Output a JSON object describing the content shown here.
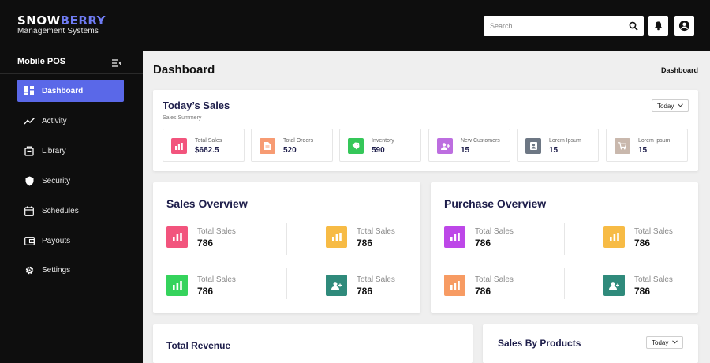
{
  "brand": {
    "name_a": "SNOW",
    "name_b": "BERRY",
    "subtitle": "Management Systems"
  },
  "search": {
    "placeholder": "Search"
  },
  "sidebar": {
    "header": "Mobile POS",
    "items": [
      {
        "label": "Dashboard",
        "icon": "grid-icon",
        "active": true
      },
      {
        "label": "Activity",
        "icon": "activity-icon"
      },
      {
        "label": "Library",
        "icon": "library-icon"
      },
      {
        "label": "Security",
        "icon": "shield-icon"
      },
      {
        "label": "Schedules",
        "icon": "calendar-icon"
      },
      {
        "label": "Payouts",
        "icon": "wallet-icon"
      },
      {
        "label": "Settings",
        "icon": "gear-icon"
      }
    ]
  },
  "page": {
    "title": "Dashboard",
    "breadcrumb": "Dashboard"
  },
  "today": {
    "title": "Today’s Sales",
    "subtitle": "Sales Summery",
    "filter": "Today",
    "stats": [
      {
        "label": "Total Sales",
        "value": "$682.5",
        "color": "#f2547d",
        "icon": "bar-chart-icon"
      },
      {
        "label": "Total Orders",
        "value": "520",
        "color": "#f79b73",
        "icon": "document-icon"
      },
      {
        "label": "Inventory",
        "value": "590",
        "color": "#35c759",
        "icon": "tag-icon"
      },
      {
        "label": "New Customers",
        "value": "15",
        "color": "#bd6ee0",
        "icon": "add-user-icon"
      },
      {
        "label": "Lorem Ipsum",
        "value": "15",
        "color": "#6d7784",
        "icon": "id-card-icon"
      },
      {
        "label": "Lorem ipsum",
        "value": "15",
        "color": "#c9b8ad",
        "icon": "cart-icon"
      }
    ]
  },
  "sales_overview": {
    "title": "Sales Overview",
    "items": [
      {
        "label": "Total Sales",
        "value": "786",
        "color": "#f2547d",
        "icon": "bar-chart-icon"
      },
      {
        "label": "Total Sales",
        "value": "786",
        "color": "#f7bb45",
        "icon": "bar-chart-icon"
      },
      {
        "label": "Total Sales",
        "value": "786",
        "color": "#35d35c",
        "icon": "bar-chart-icon"
      },
      {
        "label": "Total Sales",
        "value": "786",
        "color": "#2f8a7b",
        "icon": "add-user-icon"
      }
    ]
  },
  "purchase_overview": {
    "title": "Purchase Overview",
    "items": [
      {
        "label": "Total Sales",
        "value": "786",
        "color": "#bd47e8",
        "icon": "bar-chart-icon"
      },
      {
        "label": "Total Sales",
        "value": "786",
        "color": "#f7bb45",
        "icon": "bar-chart-icon"
      },
      {
        "label": "Total Sales",
        "value": "786",
        "color": "#f79b63",
        "icon": "bar-chart-icon"
      },
      {
        "label": "Total Sales",
        "value": "786",
        "color": "#2f8a7b",
        "icon": "add-user-icon"
      }
    ]
  },
  "total_revenue": {
    "title": "Total Revenue"
  },
  "sales_by_products": {
    "title": "Sales By Products",
    "filter": "Today"
  }
}
